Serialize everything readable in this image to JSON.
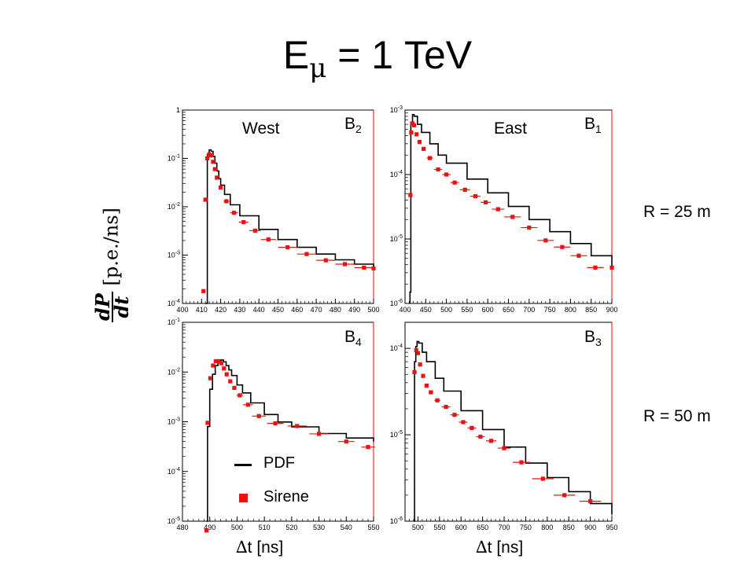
{
  "title": {
    "main": "E",
    "sub": "μ",
    "rest": " = 1 TeV"
  },
  "y_axis_label": {
    "num": "dP",
    "den": "dt",
    "units": "[p.e./ns]"
  },
  "x_axis_label": {
    "delta": "∆",
    "text": "t [ns]"
  },
  "row_labels": [
    "R = 25 m",
    "R = 50 m"
  ],
  "legend": {
    "pdf": "PDF",
    "sirene": "Sirene"
  },
  "colors": {
    "pdf": "#000000",
    "sirene": "#ee1111",
    "frame": "#000000",
    "right_border": "#ff0000"
  },
  "chart_data": [
    {
      "type": "line",
      "panel": "top-left",
      "label": "West",
      "tag": "B",
      "tag_sub": "2",
      "xlim": [
        400,
        500
      ],
      "ylim": [
        0.0001,
        1
      ],
      "yscale": "log",
      "xticks": [
        400,
        410,
        420,
        430,
        440,
        450,
        460,
        470,
        480,
        490,
        500
      ],
      "yticks": [
        {
          "v": 0.0001,
          "m": "10",
          "e": "-4"
        },
        {
          "v": 0.001,
          "m": "10",
          "e": "-3"
        },
        {
          "v": 0.01,
          "m": "10",
          "e": "-2"
        },
        {
          "v": 0.1,
          "m": "10",
          "e": "-1"
        },
        {
          "v": 1,
          "m": "1",
          "e": ""
        }
      ],
      "pdf": {
        "x": [
          412,
          413,
          414,
          415,
          416,
          417,
          418,
          419,
          420,
          422,
          425,
          430,
          440,
          450,
          460,
          470,
          480,
          490,
          500
        ],
        "y": [
          0.0001,
          0.12,
          0.15,
          0.14,
          0.11,
          0.08,
          0.055,
          0.038,
          0.028,
          0.018,
          0.011,
          0.0065,
          0.0034,
          0.0021,
          0.00145,
          0.00105,
          0.0008,
          0.00065,
          0.00055
        ]
      },
      "sirene": {
        "x": [
          411,
          412,
          413,
          414,
          415,
          416,
          417,
          418,
          420,
          423,
          427,
          432,
          438,
          445,
          455,
          465,
          475,
          485,
          495,
          500
        ],
        "y": [
          0.00018,
          0.014,
          0.1,
          0.12,
          0.115,
          0.085,
          0.06,
          0.04,
          0.025,
          0.013,
          0.0075,
          0.0048,
          0.0032,
          0.0021,
          0.00145,
          0.00105,
          0.00078,
          0.00065,
          0.00055,
          0.00053
        ],
        "xerr": [
          0.5,
          0.5,
          0.5,
          0.5,
          0.5,
          0.5,
          0.5,
          0.5,
          1,
          1.5,
          2,
          2.5,
          3,
          4,
          5,
          5,
          5,
          5,
          5,
          0
        ]
      }
    },
    {
      "type": "line",
      "panel": "top-right",
      "label": "East",
      "tag": "B",
      "tag_sub": "1",
      "xlim": [
        400,
        900
      ],
      "ylim": [
        1e-06,
        0.001
      ],
      "yscale": "log",
      "xticks": [
        400,
        450,
        500,
        550,
        600,
        650,
        700,
        750,
        800,
        850,
        900
      ],
      "yticks": [
        {
          "v": 1e-06,
          "m": "10",
          "e": "-6"
        },
        {
          "v": 1e-05,
          "m": "10",
          "e": "-5"
        },
        {
          "v": 0.0001,
          "m": "10",
          "e": "-4"
        },
        {
          "v": 0.001,
          "m": "10",
          "e": "-3"
        }
      ],
      "pdf": {
        "x": [
          412,
          414,
          418,
          422,
          430,
          440,
          460,
          480,
          500,
          550,
          600,
          650,
          700,
          750,
          800,
          850,
          900
        ],
        "y": [
          1.5e-06,
          0.00065,
          0.00085,
          0.0008,
          0.0006,
          0.00045,
          0.0003,
          0.0002,
          0.00015,
          8.5e-05,
          5.2e-05,
          3.2e-05,
          2e-05,
          1.3e-05,
          8.5e-06,
          5.5e-06,
          3.6e-06
        ]
      },
      "sirene": {
        "x": [
          413,
          415,
          418,
          422,
          428,
          435,
          445,
          460,
          480,
          500,
          520,
          545,
          570,
          595,
          625,
          660,
          700,
          740,
          780,
          820,
          860,
          900
        ],
        "y": [
          4.8e-05,
          0.00045,
          0.00062,
          0.00058,
          0.00042,
          0.00032,
          0.00025,
          0.00018,
          0.00012,
          0.0001,
          7.5e-05,
          5.8e-05,
          4.6e-05,
          3.7e-05,
          2.9e-05,
          2.2e-05,
          1.5e-05,
          9.5e-06,
          7.5e-06,
          5.5e-06,
          3.6e-06,
          3.6e-06
        ],
        "xerr": [
          1,
          1,
          1.5,
          2,
          3,
          3.5,
          5,
          7.5,
          10,
          10,
          10,
          12.5,
          12.5,
          12.5,
          15,
          20,
          20,
          20,
          20,
          20,
          20,
          0
        ]
      }
    },
    {
      "type": "line",
      "panel": "bottom-left",
      "label": "",
      "tag": "B",
      "tag_sub": "4",
      "xlim": [
        480,
        550
      ],
      "ylim": [
        1e-05,
        0.1
      ],
      "yscale": "log",
      "xticks": [
        480,
        490,
        500,
        510,
        520,
        530,
        540,
        550
      ],
      "yticks": [
        {
          "v": 1e-05,
          "m": "10",
          "e": "-5"
        },
        {
          "v": 0.0001,
          "m": "10",
          "e": "-4"
        },
        {
          "v": 0.001,
          "m": "10",
          "e": "-3"
        },
        {
          "v": 0.01,
          "m": "10",
          "e": "-2"
        },
        {
          "v": 0.1,
          "m": "10",
          "e": "-1"
        }
      ],
      "pdf": {
        "x": [
          488.8,
          489.2,
          490,
          491,
          492,
          493,
          494,
          495,
          496,
          497,
          498,
          500,
          502,
          505,
          510,
          515,
          520,
          530,
          540,
          550
        ],
        "y": [
          1e-05,
          0.0008,
          0.0045,
          0.009,
          0.0135,
          0.017,
          0.0175,
          0.016,
          0.0135,
          0.011,
          0.0085,
          0.0055,
          0.0038,
          0.0024,
          0.0014,
          0.00099,
          0.00079,
          0.00058,
          0.00047,
          0.0004
        ]
      },
      "sirene": {
        "x": [
          488.8,
          489.2,
          490.2,
          491.2,
          492.2,
          493.2,
          494.2,
          495.2,
          496.2,
          497.5,
          499,
          501,
          504,
          508,
          514,
          522,
          530,
          540,
          548
        ],
        "y": [
          6.5e-06,
          0.00095,
          0.0075,
          0.0135,
          0.0165,
          0.0165,
          0.015,
          0.0118,
          0.009,
          0.0065,
          0.0048,
          0.0034,
          0.0022,
          0.0013,
          0.00093,
          0.00082,
          0.00057,
          0.0004,
          0.00031
        ],
        "xerr": [
          0.2,
          0.2,
          0.5,
          0.5,
          0.5,
          0.5,
          0.5,
          0.5,
          0.5,
          0.75,
          0.75,
          1.2,
          1.8,
          2.5,
          3,
          3.5,
          3.5,
          3,
          2.5
        ]
      }
    },
    {
      "type": "line",
      "panel": "bottom-right",
      "label": "",
      "tag": "B",
      "tag_sub": "3",
      "xlim": [
        470,
        950
      ],
      "ylim": [
        1e-06,
        0.0002
      ],
      "yscale": "log",
      "xticks": [
        500,
        550,
        600,
        650,
        700,
        750,
        800,
        850,
        900,
        950
      ],
      "yticks": [
        {
          "v": 1e-06,
          "m": "10",
          "e": "-6"
        },
        {
          "v": 1e-05,
          "m": "10",
          "e": "-5"
        },
        {
          "v": 0.0001,
          "m": "10",
          "e": "-4"
        }
      ],
      "pdf": {
        "x": [
          490,
          492,
          495,
          498,
          502,
          510,
          520,
          540,
          560,
          600,
          650,
          700,
          750,
          800,
          850,
          900,
          950
        ],
        "y": [
          1e-06,
          7e-05,
          0.000105,
          0.00012,
          0.000115,
          9e-05,
          7e-05,
          4.5e-05,
          3.2e-05,
          1.9e-05,
          1.15e-05,
          7.2e-06,
          4.7e-06,
          3.2e-06,
          2.2e-06,
          1.6e-06,
          1.2e-06
        ]
      },
      "sirene": {
        "x": [
          492,
          496,
          500,
          505,
          512,
          520,
          530,
          545,
          565,
          585,
          605,
          625,
          645,
          670,
          700,
          740,
          790,
          840,
          900
        ],
        "y": [
          5.3e-05,
          9.5e-05,
          8.8e-05,
          6.5e-05,
          4.8e-05,
          3.7e-05,
          3.1e-05,
          2.5e-05,
          2.1e-05,
          1.7e-05,
          1.4e-05,
          1.2e-05,
          9.5e-06,
          8.5e-06,
          7e-06,
          4.8e-06,
          3.1e-06,
          2e-06,
          1.7e-06
        ],
        "xerr": [
          1.5,
          2,
          2.5,
          3,
          4,
          4,
          5,
          7,
          10,
          10,
          10,
          10,
          10,
          12,
          15,
          20,
          25,
          25,
          25
        ]
      }
    }
  ]
}
